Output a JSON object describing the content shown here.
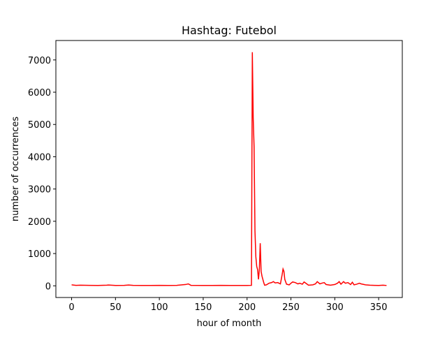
{
  "chart_data": {
    "type": "line",
    "title": "Hashtag: Futebol",
    "x_label": "hour of month",
    "y_label": "number of occurrences",
    "x": [
      0,
      5,
      10,
      20,
      30,
      40,
      42,
      50,
      60,
      65,
      70,
      80,
      90,
      100,
      110,
      120,
      130,
      133,
      136,
      150,
      160,
      170,
      180,
      190,
      200,
      205,
      206,
      207,
      208,
      209,
      210,
      211,
      212,
      213,
      214,
      215,
      216,
      217,
      218,
      219,
      220,
      222,
      225,
      228,
      230,
      232,
      235,
      238,
      240,
      241,
      242,
      243,
      245,
      248,
      250,
      252,
      255,
      258,
      260,
      263,
      265,
      268,
      270,
      275,
      278,
      280,
      283,
      285,
      288,
      290,
      295,
      300,
      303,
      305,
      307,
      310,
      312,
      315,
      318,
      320,
      322,
      325,
      328,
      330,
      335,
      340,
      345,
      350,
      355,
      359
    ],
    "series": [
      {
        "name": "Futebol",
        "color": "#ff0000",
        "values": [
          30,
          15,
          20,
          15,
          10,
          20,
          25,
          10,
          15,
          25,
          15,
          10,
          10,
          15,
          10,
          15,
          40,
          60,
          15,
          10,
          10,
          15,
          10,
          10,
          10,
          15,
          7240,
          5200,
          4300,
          1700,
          900,
          600,
          500,
          200,
          500,
          1320,
          450,
          300,
          200,
          100,
          20,
          30,
          80,
          100,
          130,
          90,
          100,
          60,
          350,
          520,
          450,
          200,
          50,
          30,
          80,
          120,
          100,
          60,
          80,
          50,
          120,
          60,
          20,
          30,
          60,
          130,
          60,
          80,
          100,
          40,
          20,
          40,
          80,
          130,
          50,
          130,
          80,
          100,
          40,
          110,
          30,
          50,
          80,
          60,
          30,
          20,
          15,
          10,
          20,
          10
        ]
      }
    ],
    "xlim": [
      -17.95,
      376.95
    ],
    "ylim": [
      -362,
      7602
    ],
    "xticks": [
      0,
      50,
      100,
      150,
      200,
      250,
      300,
      350
    ],
    "yticks": [
      0,
      1000,
      2000,
      3000,
      4000,
      5000,
      6000,
      7000
    ]
  }
}
